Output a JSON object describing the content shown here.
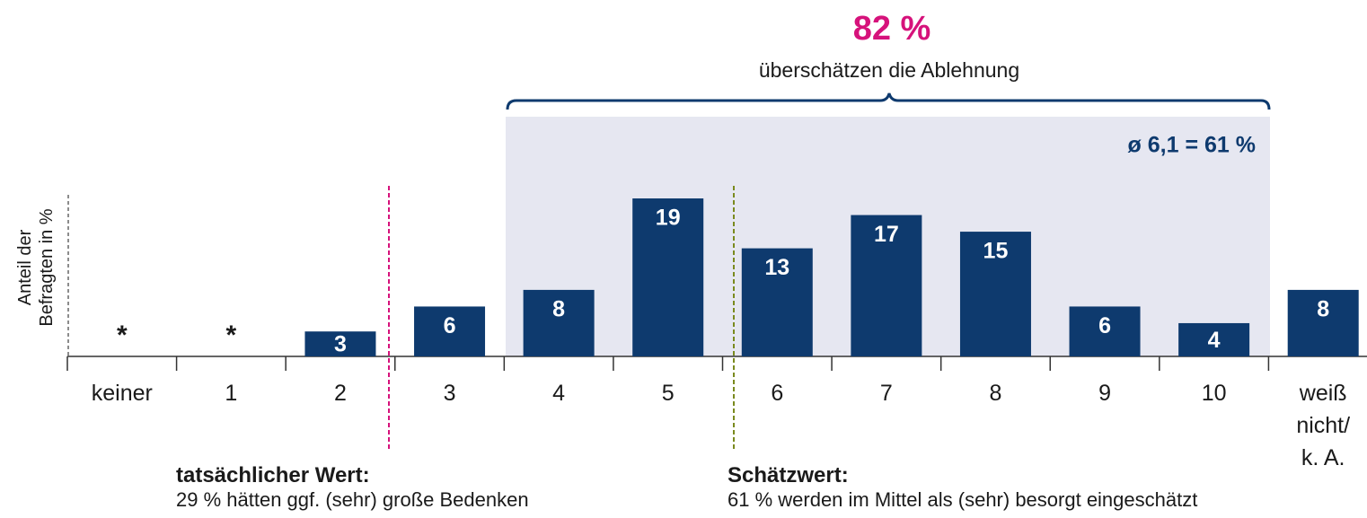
{
  "chart_data": {
    "type": "bar",
    "headline": "82 %",
    "headline_sub": "überschätzen die Ablehnung",
    "mean_label": "ø 6,1 = 61 %",
    "y_label": "Anteil der\nBefragten in %",
    "categories": [
      "keiner",
      "1",
      "2",
      "3",
      "4",
      "5",
      "6",
      "7",
      "8",
      "9",
      "10",
      "weiß\nnicht/\nk. A."
    ],
    "values": [
      null,
      null,
      3,
      6,
      8,
      19,
      13,
      17,
      15,
      6,
      4,
      8
    ],
    "value_labels": [
      "*",
      "*",
      "3",
      "6",
      "8",
      "19",
      "13",
      "17",
      "15",
      "6",
      "4",
      "8"
    ],
    "color": "#0e3a6e",
    "ylim": [
      0,
      21
    ],
    "annotations": [
      {
        "title": "tatsächlicher Wert:",
        "text": "29 % hätten ggf. (sehr) große Bedenken",
        "color": "#d6127b"
      },
      {
        "title": "Schätzwert:",
        "text": "61 % werden im Mittel als (sehr) besorgt eingeschätzt",
        "color": "#7a8a1e"
      }
    ]
  }
}
